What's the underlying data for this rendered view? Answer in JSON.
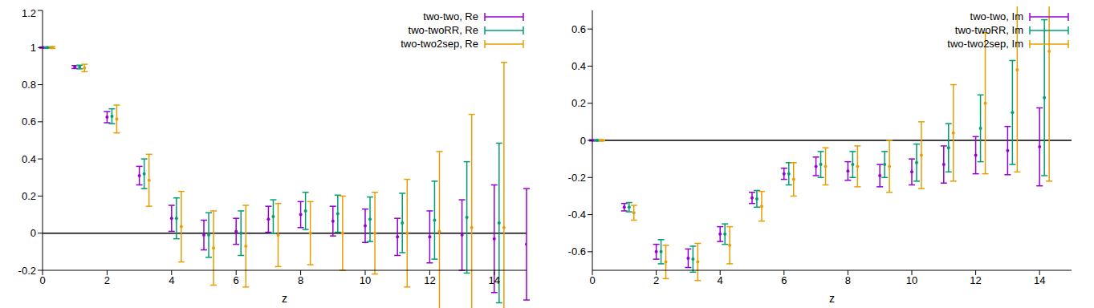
{
  "chart_data": [
    {
      "type": "scatter",
      "x_label": "z",
      "xlim": [
        0,
        15
      ],
      "xticks": [
        0,
        2,
        4,
        6,
        8,
        10,
        12,
        14
      ],
      "ylim": [
        -0.2,
        1.2
      ],
      "yticks": [
        -0.2,
        0,
        0.2,
        0.4,
        0.6,
        0.8,
        1,
        1.2
      ],
      "legend": "upper right",
      "reference_line": 0,
      "series": [
        {
          "name": "two-two, Re",
          "color": "#9400d3",
          "x": [
            0,
            1,
            2,
            3,
            4,
            5,
            6,
            7,
            8,
            9,
            10,
            11,
            12,
            13,
            14,
            15
          ],
          "values": [
            1,
            0.895,
            0.625,
            0.31,
            0.08,
            -0.01,
            0.01,
            0.075,
            0.1,
            0.065,
            0.04,
            -0.02,
            -0.02,
            -0.01,
            -0.03,
            -0.06
          ],
          "errors": [
            0.003,
            0.008,
            0.03,
            0.05,
            0.07,
            0.08,
            0.07,
            0.07,
            0.07,
            0.08,
            0.09,
            0.1,
            0.14,
            0.19,
            0.29,
            0.3
          ]
        },
        {
          "name": "two-twoRR, Re",
          "color": "#009e73",
          "x": [
            0.15,
            1.15,
            2.15,
            3.15,
            4.15,
            5.15,
            6.15,
            7.15,
            8.15,
            9.15,
            10.15,
            11.15,
            12.15,
            13.15,
            14.15
          ],
          "values": [
            1,
            0.895,
            0.63,
            0.32,
            0.08,
            -0.01,
            0,
            0.09,
            0.12,
            0.105,
            0.075,
            0.055,
            0.07,
            0.085,
            0.055
          ],
          "errors": [
            0.003,
            0.01,
            0.04,
            0.08,
            0.11,
            0.12,
            0.12,
            0.09,
            0.1,
            0.1,
            0.12,
            0.16,
            0.21,
            0.3,
            0.43
          ]
        },
        {
          "name": "two-two2sep, Re",
          "color": "#e69f00",
          "x": [
            0.3,
            1.3,
            2.3,
            3.3,
            4.3,
            5.3,
            6.3,
            7.3,
            8.3,
            9.3,
            10.3,
            11.3,
            12.3,
            13.3,
            14.3
          ],
          "values": [
            1,
            0.89,
            0.615,
            0.285,
            0.035,
            -0.08,
            -0.07,
            -0.01,
            0,
            0,
            0,
            0,
            0.01,
            0.03,
            0.03
          ],
          "errors": [
            0.005,
            0.02,
            0.075,
            0.14,
            0.19,
            0.2,
            0.22,
            0.17,
            0.17,
            0.2,
            0.22,
            0.29,
            0.43,
            0.61,
            0.89
          ]
        }
      ]
    },
    {
      "type": "scatter",
      "x_label": "z",
      "xlim": [
        0,
        15
      ],
      "xticks": [
        0,
        2,
        4,
        6,
        8,
        10,
        12,
        14
      ],
      "ylim": [
        -0.7,
        0.7
      ],
      "yticks": [
        -0.6,
        -0.4,
        -0.2,
        0,
        0.2,
        0.4,
        0.6
      ],
      "legend": "upper right",
      "reference_line": 0,
      "series": [
        {
          "name": "two-two, Im",
          "color": "#9400d3",
          "x": [
            0,
            1,
            2,
            3,
            4,
            5,
            6,
            7,
            8,
            9,
            10,
            11,
            12,
            13,
            14
          ],
          "values": [
            0,
            -0.36,
            -0.6,
            -0.635,
            -0.505,
            -0.31,
            -0.18,
            -0.14,
            -0.165,
            -0.19,
            -0.17,
            -0.13,
            -0.08,
            -0.055,
            -0.035
          ],
          "errors": [
            0.003,
            0.02,
            0.04,
            0.05,
            0.04,
            0.03,
            0.03,
            0.05,
            0.05,
            0.06,
            0.07,
            0.1,
            0.1,
            0.13,
            0.21
          ]
        },
        {
          "name": "two-twoRR, Im",
          "color": "#009e73",
          "x": [
            0.15,
            1.15,
            2.15,
            3.15,
            4.15,
            5.15,
            6.15,
            7.15,
            8.15,
            9.15,
            10.15,
            11.15,
            12.15,
            13.15,
            14.15
          ],
          "values": [
            0,
            -0.36,
            -0.6,
            -0.64,
            -0.505,
            -0.315,
            -0.18,
            -0.13,
            -0.13,
            -0.13,
            -0.12,
            -0.04,
            0.065,
            0.15,
            0.23
          ],
          "errors": [
            0.003,
            0.025,
            0.065,
            0.07,
            0.055,
            0.045,
            0.06,
            0.07,
            0.07,
            0.07,
            0.1,
            0.13,
            0.18,
            0.28,
            0.42
          ]
        },
        {
          "name": "two-two2sep, Im",
          "color": "#e69f00",
          "x": [
            0.3,
            1.3,
            2.3,
            3.3,
            4.3,
            5.3,
            6.3,
            7.3,
            8.3,
            9.3,
            10.3,
            11.3,
            12.3,
            13.3,
            14.3
          ],
          "values": [
            0,
            -0.39,
            -0.655,
            -0.655,
            -0.565,
            -0.355,
            -0.21,
            -0.14,
            -0.14,
            -0.14,
            -0.08,
            0.04,
            0.2,
            0.38,
            0.48
          ],
          "errors": [
            0.003,
            0.04,
            0.09,
            0.1,
            0.1,
            0.08,
            0.09,
            0.1,
            0.11,
            0.14,
            0.18,
            0.26,
            0.38,
            0.55,
            0.7
          ]
        }
      ]
    }
  ]
}
